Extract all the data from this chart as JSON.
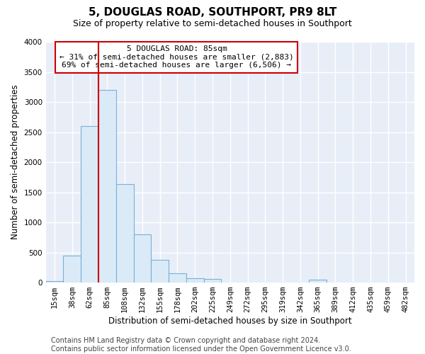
{
  "title": "5, DOUGLAS ROAD, SOUTHPORT, PR9 8LT",
  "subtitle": "Size of property relative to semi-detached houses in Southport",
  "xlabel": "Distribution of semi-detached houses by size in Southport",
  "ylabel": "Number of semi-detached properties",
  "bins": [
    "15sqm",
    "38sqm",
    "62sqm",
    "85sqm",
    "108sqm",
    "132sqm",
    "155sqm",
    "178sqm",
    "202sqm",
    "225sqm",
    "249sqm",
    "272sqm",
    "295sqm",
    "319sqm",
    "342sqm",
    "365sqm",
    "389sqm",
    "412sqm",
    "435sqm",
    "459sqm",
    "482sqm"
  ],
  "values": [
    30,
    450,
    2600,
    3200,
    1640,
    800,
    380,
    155,
    70,
    60,
    5,
    5,
    5,
    0,
    0,
    50,
    0,
    0,
    0,
    0,
    0
  ],
  "bar_color": "#daeaf7",
  "bar_edge_color": "#7ab0d8",
  "vline_x_index": 3,
  "vline_color": "#cc0000",
  "annotation_text_line1": "5 DOUGLAS ROAD: 85sqm",
  "annotation_text_line2": "← 31% of semi-detached houses are smaller (2,883)",
  "annotation_text_line3": "69% of semi-detached houses are larger (6,506) →",
  "ylim": [
    0,
    4000
  ],
  "yticks": [
    0,
    500,
    1000,
    1500,
    2000,
    2500,
    3000,
    3500,
    4000
  ],
  "footer_line1": "Contains HM Land Registry data © Crown copyright and database right 2024.",
  "footer_line2": "Contains public sector information licensed under the Open Government Licence v3.0.",
  "bg_color": "#ffffff",
  "plot_bg_color": "#e8eef8",
  "grid_color": "#ffffff",
  "title_fontsize": 11,
  "subtitle_fontsize": 9,
  "axis_label_fontsize": 8.5,
  "tick_fontsize": 7.5,
  "annotation_fontsize": 8,
  "footer_fontsize": 7
}
